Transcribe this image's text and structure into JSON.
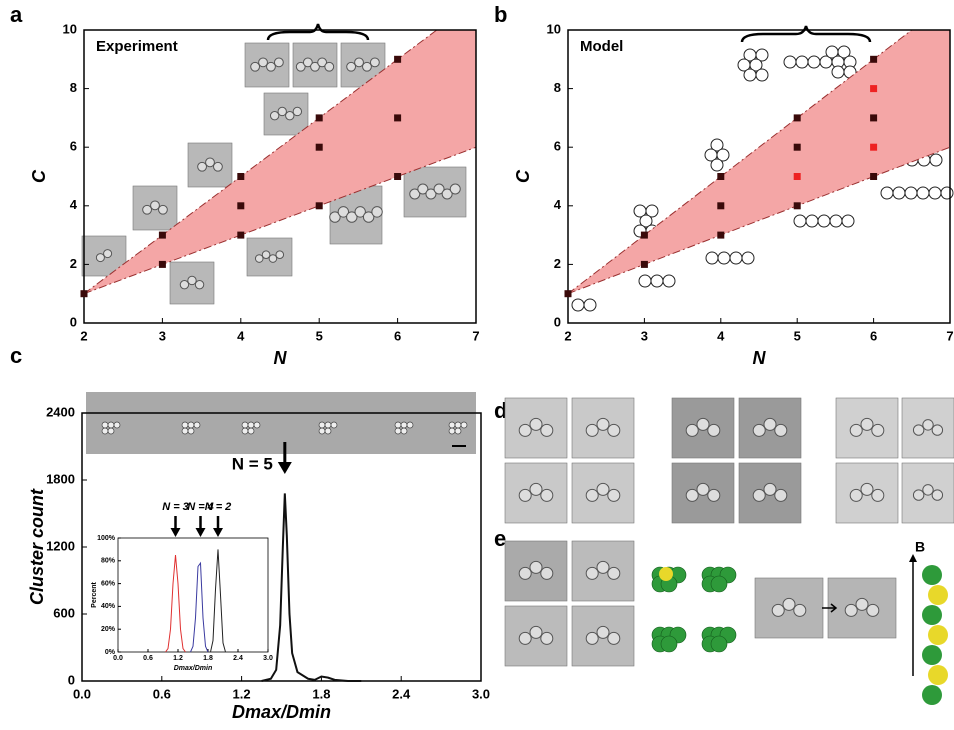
{
  "chart_data": [
    {
      "type": "scatter",
      "panel": "a",
      "annotation": "Experiment",
      "x_label": "N",
      "y_label": "C",
      "x": [
        2,
        3,
        3,
        4,
        4,
        4,
        5,
        5,
        5,
        6,
        6,
        6
      ],
      "values": [
        1,
        2,
        3,
        3,
        4,
        5,
        4,
        6,
        7,
        5,
        7,
        9
      ],
      "color": "#3a0a0a",
      "band": {
        "x": [
          2,
          7
        ],
        "lower": [
          1,
          6
        ],
        "upper": [
          1,
          11
        ],
        "color": "#f4a6a6"
      },
      "xlim": [
        2,
        7
      ],
      "ylim": [
        0,
        10
      ],
      "xticks": [
        2,
        3,
        4,
        5,
        6,
        7
      ],
      "yticks": [
        0,
        2,
        4,
        6,
        8,
        10
      ]
    },
    {
      "type": "scatter",
      "panel": "b",
      "annotation": "Model",
      "x_label": "N",
      "y_label": "C",
      "x": [
        2,
        3,
        3,
        4,
        4,
        4,
        5,
        5,
        5,
        5,
        6,
        6,
        6,
        6,
        6
      ],
      "values": [
        1,
        2,
        3,
        3,
        4,
        5,
        4,
        5,
        6,
        7,
        5,
        6,
        7,
        8,
        9
      ],
      "colors": [
        "#3a0a0a",
        "#3a0a0a",
        "#3a0a0a",
        "#3a0a0a",
        "#3a0a0a",
        "#3a0a0a",
        "#3a0a0a",
        "#ee2222",
        "#3a0a0a",
        "#3a0a0a",
        "#3a0a0a",
        "#ee2222",
        "#3a0a0a",
        "#ee2222",
        "#3a0a0a"
      ],
      "band": {
        "x": [
          2,
          7
        ],
        "lower": [
          1,
          6
        ],
        "upper": [
          1,
          11
        ],
        "color": "#f4a6a6"
      },
      "xlim": [
        2,
        7
      ],
      "ylim": [
        0,
        10
      ],
      "xticks": [
        2,
        3,
        4,
        5,
        6,
        7
      ],
      "yticks": [
        0,
        2,
        4,
        6,
        8,
        10
      ]
    },
    {
      "type": "line",
      "panel": "c",
      "annotation": "N = 5",
      "x_label": "Dmax/Dmin",
      "y_label": "Cluster count",
      "x": [
        1.35,
        1.42,
        1.46,
        1.49,
        1.51,
        1.525,
        1.54,
        1.56,
        1.58,
        1.62,
        1.7,
        1.75,
        1.8,
        1.85,
        1.9,
        2.0,
        2.1
      ],
      "values": [
        0,
        20,
        100,
        500,
        1200,
        1680,
        1300,
        600,
        250,
        80,
        20,
        10,
        40,
        30,
        10,
        0,
        0
      ],
      "color": "#111111",
      "xlim": [
        0,
        3
      ],
      "ylim": [
        0,
        2400
      ],
      "xticks": [
        {
          "value": 0,
          "label": "0.0"
        },
        {
          "value": 0.6,
          "label": "0.6"
        },
        {
          "value": 1.2,
          "label": "1.2"
        },
        {
          "value": 1.8,
          "label": "1.8"
        },
        {
          "value": 2.4,
          "label": "2.4"
        },
        {
          "value": 3,
          "label": "3.0"
        }
      ],
      "yticks": [
        0,
        600,
        1200,
        1800,
        2400
      ]
    },
    {
      "type": "multiline",
      "x_label": "Dmax/Dmin",
      "y_label": "Percent",
      "series": [
        {
          "name": "N = 3",
          "color": "#e03030",
          "x": [
            0.95,
            1.0,
            1.05,
            1.1,
            1.15,
            1.2,
            1.25,
            1.3,
            1.35
          ],
          "values": [
            0,
            3,
            20,
            60,
            85,
            60,
            20,
            3,
            0
          ]
        },
        {
          "name": "N = 4",
          "color": "#3a3aa0",
          "x": [
            1.45,
            1.5,
            1.55,
            1.6,
            1.65,
            1.7,
            1.75,
            1.8
          ],
          "values": [
            0,
            5,
            30,
            75,
            78,
            30,
            5,
            0
          ]
        },
        {
          "name": "N = 2",
          "color": "#222222",
          "x": [
            1.85,
            1.9,
            1.95,
            2.0,
            2.05,
            2.1,
            2.15
          ],
          "values": [
            0,
            10,
            55,
            90,
            50,
            8,
            0
          ]
        }
      ],
      "xlim": [
        0,
        3
      ],
      "ylim": [
        0,
        100
      ],
      "xticks": [
        {
          "value": 0,
          "label": "0.0"
        },
        {
          "value": 0.6,
          "label": "0.6"
        },
        {
          "value": 1.2,
          "label": "1.2"
        },
        {
          "value": 1.8,
          "label": "1.8"
        },
        {
          "value": 2.4,
          "label": "2.4"
        },
        {
          "value": 3,
          "label": "3.0"
        }
      ],
      "yticks": [
        {
          "value": 0,
          "label": "0%"
        },
        {
          "value": 20,
          "label": "20%"
        },
        {
          "value": 40,
          "label": "40%"
        },
        {
          "value": 60,
          "label": "60%"
        },
        {
          "value": 80,
          "label": "80%"
        },
        {
          "value": 100,
          "label": "100%"
        }
      ]
    }
  ],
  "panels": {
    "d": {
      "label": "d"
    },
    "e": {
      "label": "e",
      "axis_label": "B"
    }
  }
}
